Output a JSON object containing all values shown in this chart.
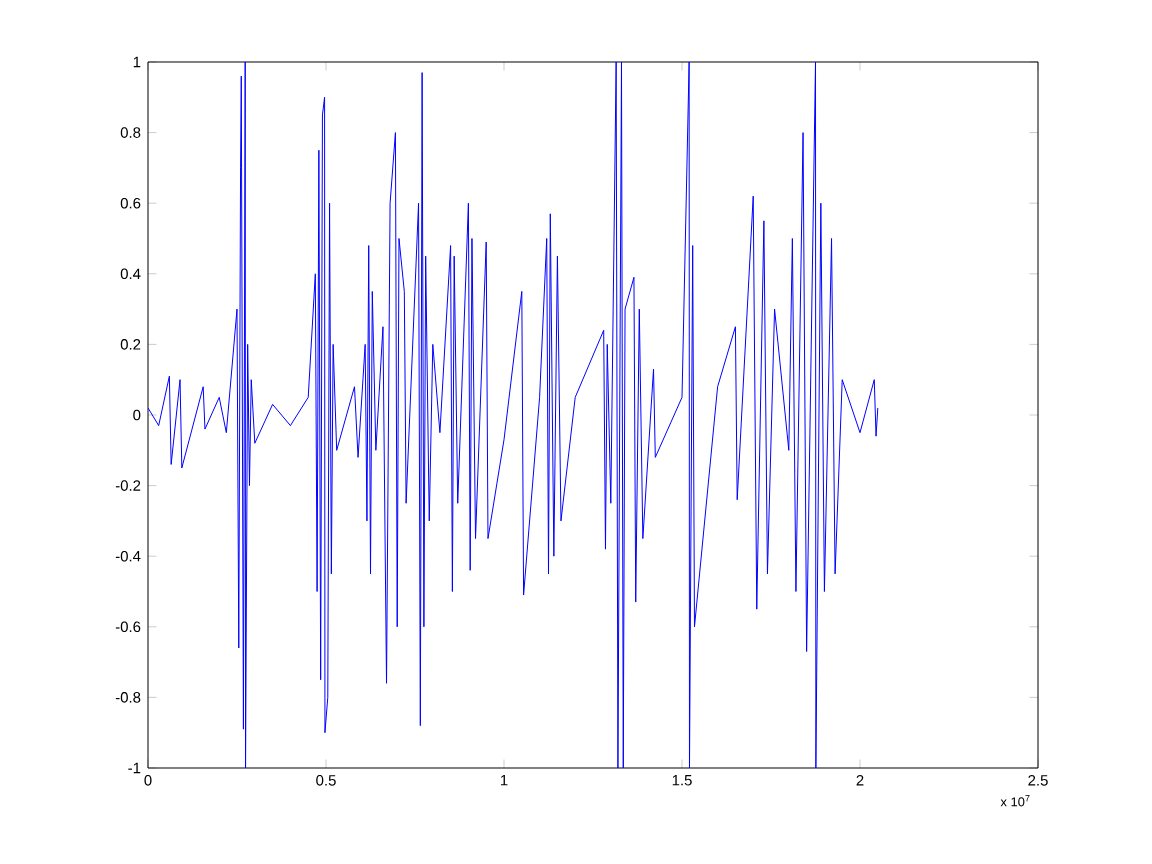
{
  "chart_data": {
    "type": "line",
    "color": "#0000ff",
    "x": [
      0,
      0.03,
      0.06,
      0.065,
      0.09,
      0.095,
      0.155,
      0.16,
      0.2,
      0.22,
      0.25,
      0.255,
      0.26,
      0.262,
      0.268,
      0.273,
      0.274,
      0.28,
      0.285,
      0.29,
      0.3,
      0.35,
      0.4,
      0.45,
      0.47,
      0.475,
      0.48,
      0.485,
      0.49,
      0.496,
      0.497,
      0.505,
      0.51,
      0.515,
      0.52,
      0.53,
      0.58,
      0.59,
      0.61,
      0.615,
      0.62,
      0.625,
      0.63,
      0.64,
      0.66,
      0.67,
      0.68,
      0.695,
      0.7,
      0.705,
      0.72,
      0.725,
      0.76,
      0.765,
      0.77,
      0.775,
      0.78,
      0.79,
      0.8,
      0.82,
      0.85,
      0.855,
      0.86,
      0.87,
      0.9,
      0.905,
      0.91,
      0.92,
      0.95,
      0.955,
      1.0,
      1.05,
      1.055,
      1.1,
      1.12,
      1.125,
      1.13,
      1.14,
      1.15,
      1.16,
      1.2,
      1.28,
      1.285,
      1.29,
      1.3,
      1.315,
      1.32,
      1.33,
      1.335,
      1.34,
      1.365,
      1.37,
      1.38,
      1.39,
      1.42,
      1.425,
      1.5,
      1.52,
      1.521,
      1.53,
      1.535,
      1.6,
      1.65,
      1.655,
      1.7,
      1.71,
      1.73,
      1.74,
      1.76,
      1.8,
      1.81,
      1.82,
      1.84,
      1.85,
      1.875,
      1.876,
      1.89,
      1.9,
      1.92,
      1.93,
      1.95,
      2.0,
      2.04,
      2.045,
      2.05
    ],
    "values": [
      0.02,
      -0.03,
      0.11,
      -0.14,
      0.1,
      -0.15,
      0.08,
      -0.04,
      0.05,
      -0.05,
      0.3,
      -0.66,
      0.7,
      0.96,
      -0.89,
      1,
      -1,
      0.2,
      -0.2,
      0.1,
      -0.08,
      0.03,
      -0.03,
      0.05,
      0.4,
      -0.5,
      0.75,
      -0.75,
      0.85,
      0.9,
      -0.9,
      -0.8,
      0.6,
      -0.45,
      0.2,
      -0.1,
      0.08,
      -0.12,
      0.2,
      -0.3,
      0.48,
      -0.45,
      0.35,
      -0.1,
      0.25,
      -0.76,
      0.6,
      0.8,
      -0.6,
      0.5,
      0.35,
      -0.25,
      0.6,
      -0.88,
      0.97,
      -0.6,
      0.45,
      -0.3,
      0.2,
      -0.05,
      0.48,
      -0.5,
      0.45,
      -0.25,
      0.6,
      -0.44,
      0.5,
      -0.35,
      0.49,
      -0.35,
      -0.07,
      0.35,
      -0.51,
      0.05,
      0.5,
      -0.45,
      0.57,
      -0.4,
      0.45,
      -0.3,
      0.05,
      0.24,
      -0.38,
      0.2,
      -0.25,
      1,
      -1,
      1,
      -1,
      0.3,
      0.39,
      -0.53,
      0.3,
      -0.35,
      0.13,
      -0.12,
      0.05,
      1,
      -1,
      0.48,
      -0.6,
      0.08,
      0.25,
      -0.24,
      0.62,
      -0.55,
      0.55,
      -0.45,
      0.3,
      -0.1,
      0.5,
      -0.5,
      0.8,
      -0.67,
      1,
      -1,
      0.6,
      -0.5,
      0.5,
      -0.45,
      0.1,
      -0.05,
      0.1,
      -0.06,
      0.02
    ],
    "xlim": [
      0,
      2.5
    ],
    "ylim": [
      -1,
      1
    ],
    "xticks": [
      0,
      0.5,
      1,
      1.5,
      2,
      2.5
    ],
    "yticks": [
      -1,
      -0.8,
      -0.6,
      -0.4,
      -0.2,
      0,
      0.2,
      0.4,
      0.6,
      0.8,
      1
    ],
    "annotations": [
      "x 10$^{7}$"
    ],
    "marker": "none",
    "line_style": "solid"
  }
}
